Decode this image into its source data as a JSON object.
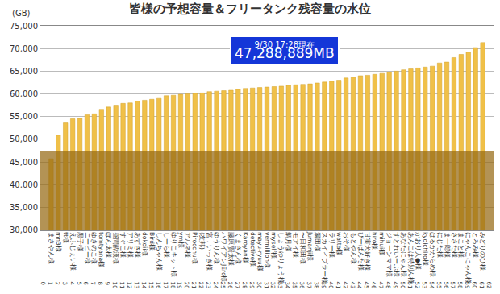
{
  "chart_data": {
    "type": "bar",
    "title": "皆様の予想容量＆フリータンク残容量の水位",
    "y_label": "(GB)",
    "categories": [
      "まさやん様",
      "mn3様",
      "tt様",
      "えふじぇい様",
      "黒子様",
      "ニーピー様",
      "ゆきのこ様",
      "tomtyana様",
      "ぼん太様",
      "昼間酔漢様",
      "すぐこ様",
      "アリミ様",
      "あずさ様",
      "dokoii様",
      "Bird様",
      "しんちゃん様",
      "しーら様",
      "ゆりこキット様",
      "ym様",
      "アルネ様",
      "Pirocchu様",
      "(友邦)",
      "宮．いっき様",
      "ゆうりん様",
      "ハワイアンJEro様",
      "藤原 賢太様",
      "くまさん様",
      "Karoyan様",
      "detective様",
      "mayu-ryuu様",
      "vermillion様",
      "myself様",
      "しょうゆりょう様",
      "鯛月様",
      "モアイ様",
      "〜日和田様",
      "Jumanji様",
      "湯田様",
      "スカイイブラー様",
      "ラリー様",
      "watta様",
      "おそ様",
      "もとやん様",
      "ぴーぱんた様",
      "甘実犬好き様",
      "hiro様",
      "mihui様",
      "ジョーンママ様",
      "すとれいーぶ様",
      "あなたにゃん様",
      "あんこは特別ん様",
      "かおり人●様",
      "kyoichiro様",
      "はるかからめ様",
      "にじた様",
      "ま一郎様",
      "ささた様",
      "まこと様",
      "にゃんこにゃん様",
      "とろみ様",
      "みどりのひ様"
    ],
    "x": [
      1,
      2,
      3,
      4,
      5,
      6,
      7,
      8,
      9,
      10,
      11,
      12,
      13,
      14,
      15,
      16,
      17,
      18,
      19,
      20,
      21,
      22,
      23,
      24,
      25,
      26,
      27,
      28,
      29,
      30,
      31,
      32,
      33,
      34,
      35,
      36,
      37,
      38,
      39,
      40,
      41,
      42,
      43,
      44,
      45,
      46,
      47,
      48,
      49,
      50,
      51,
      52,
      53,
      54,
      55,
      56,
      57,
      58,
      59,
      60,
      61
    ],
    "values": [
      45700,
      50900,
      53600,
      54500,
      54600,
      55400,
      55600,
      56600,
      57100,
      57500,
      57900,
      58000,
      58400,
      58600,
      58800,
      59000,
      59600,
      59700,
      59900,
      60000,
      60100,
      60200,
      60500,
      60600,
      60700,
      60800,
      61000,
      61200,
      61300,
      61400,
      61500,
      61600,
      61700,
      61900,
      62000,
      62100,
      62200,
      62400,
      62600,
      62800,
      63000,
      63500,
      63700,
      64000,
      64100,
      64300,
      64500,
      64800,
      65000,
      65300,
      65500,
      65700,
      65900,
      66100,
      66800,
      67000,
      68000,
      68700,
      69200,
      70200,
      71300
    ],
    "color": "#f0c048",
    "water_level": 47288.889,
    "annotation": [
      "9/30 17:28現在",
      "47,288,889MB"
    ],
    "xlim": [
      -0.5,
      62.5
    ],
    "xticks": [
      0,
      1,
      2,
      3,
      4,
      5,
      6,
      7,
      8,
      9,
      10,
      11,
      12,
      13,
      14,
      15,
      16,
      17,
      18,
      19,
      20,
      21,
      22,
      23,
      24,
      25,
      26,
      27,
      28,
      29,
      30,
      31,
      32,
      33,
      34,
      35,
      36,
      37,
      38,
      39,
      40,
      41,
      42,
      43,
      44,
      45,
      46,
      47,
      48,
      49,
      50,
      51,
      52,
      53,
      54,
      55,
      56,
      57,
      58,
      59,
      60,
      61,
      62
    ],
    "ylim": [
      30000,
      75000
    ],
    "yticks": [
      {
        "value": 30000,
        "label": "30,000"
      },
      {
        "value": 35000,
        "label": "35,000"
      },
      {
        "value": 40000,
        "label": "40,000"
      },
      {
        "value": 45000,
        "label": "45,000"
      },
      {
        "value": 50000,
        "label": "50,000"
      },
      {
        "value": 55000,
        "label": "55,000"
      },
      {
        "value": 60000,
        "label": "60,000"
      },
      {
        "value": 65000,
        "label": "65,000"
      },
      {
        "value": 70000,
        "label": "70,000"
      },
      {
        "value": 75000,
        "label": "75,000"
      }
    ],
    "grid": true
  }
}
